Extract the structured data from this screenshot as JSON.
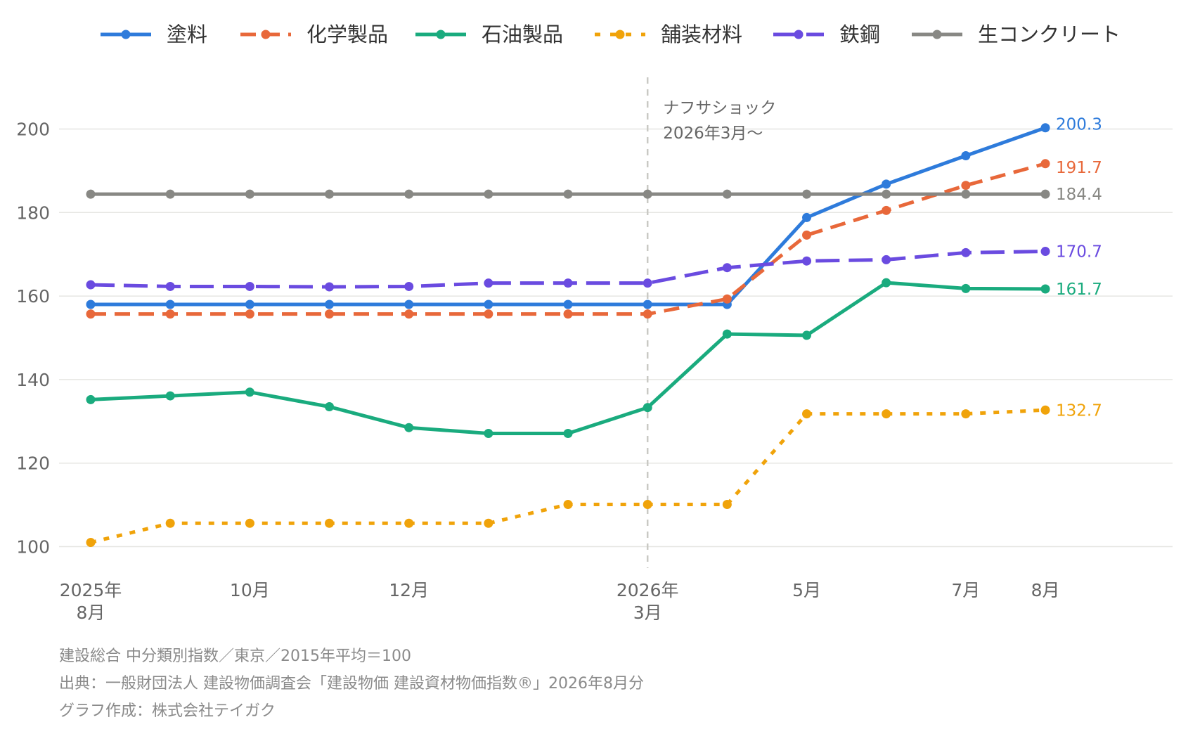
{
  "chart_data": {
    "type": "line",
    "categories": [
      "2025年\n8月",
      "",
      "10月",
      "",
      "12月",
      "",
      "",
      "2026年\n3月",
      "",
      "5月",
      "",
      "7月",
      "8月"
    ],
    "y_axis": {
      "ylim": [
        100,
        200
      ],
      "ticks": [
        100,
        120,
        140,
        160,
        180,
        200
      ]
    },
    "grid": "horizontal",
    "legend": {
      "position": "top"
    },
    "annotation": {
      "lines": [
        "ナフサショック",
        "2026年3月〜"
      ],
      "at_category": "2026年\n3月"
    },
    "series": [
      {
        "name": "塗料",
        "color": "#2e7bdb",
        "dash": "solid",
        "end_label": "200.3",
        "values": [
          158.0,
          158.0,
          158.0,
          158.0,
          158.0,
          158.0,
          158.0,
          158.0,
          158.0,
          178.8,
          186.8,
          193.6,
          200.3
        ]
      },
      {
        "name": "化学製品",
        "color": "#e8683a",
        "dash": "dashed",
        "end_label": "191.7",
        "values": [
          155.7,
          155.7,
          155.7,
          155.7,
          155.7,
          155.7,
          155.7,
          155.7,
          159.3,
          174.6,
          180.5,
          186.5,
          191.7
        ]
      },
      {
        "name": "石油製品",
        "color": "#1aab7e",
        "dash": "solid",
        "end_label": "161.7",
        "values": [
          135.2,
          136.1,
          137.0,
          133.5,
          128.5,
          127.1,
          127.1,
          133.3,
          150.9,
          150.6,
          163.2,
          161.8,
          161.7
        ]
      },
      {
        "name": "舗装材料",
        "color": "#f0a30a",
        "dash": "dotted",
        "end_label": "132.7",
        "values": [
          101.0,
          105.6,
          105.6,
          105.6,
          105.6,
          105.6,
          110.1,
          110.1,
          110.1,
          131.8,
          131.8,
          131.8,
          132.7
        ]
      },
      {
        "name": "鉄鋼",
        "color": "#6a4be0",
        "dash": "longdash",
        "end_label": "170.7",
        "values": [
          162.7,
          162.3,
          162.3,
          162.2,
          162.3,
          163.1,
          163.1,
          163.1,
          166.8,
          168.4,
          168.7,
          170.4,
          170.7
        ]
      },
      {
        "name": "生コンクリート",
        "color": "#888884",
        "dash": "solid",
        "end_label": "184.4",
        "values": [
          184.4,
          184.4,
          184.4,
          184.4,
          184.4,
          184.4,
          184.4,
          184.4,
          184.4,
          184.4,
          184.4,
          184.4,
          184.4
        ]
      }
    ]
  },
  "notes": {
    "line1": "建設総合 中分類別指数／東京／2015年平均＝100",
    "line2": "出典：一般財団法人 建設物価調査会「建設物価 建設資材物価指数®」2026年8月分",
    "line3": "グラフ作成：株式会社テイガク"
  }
}
